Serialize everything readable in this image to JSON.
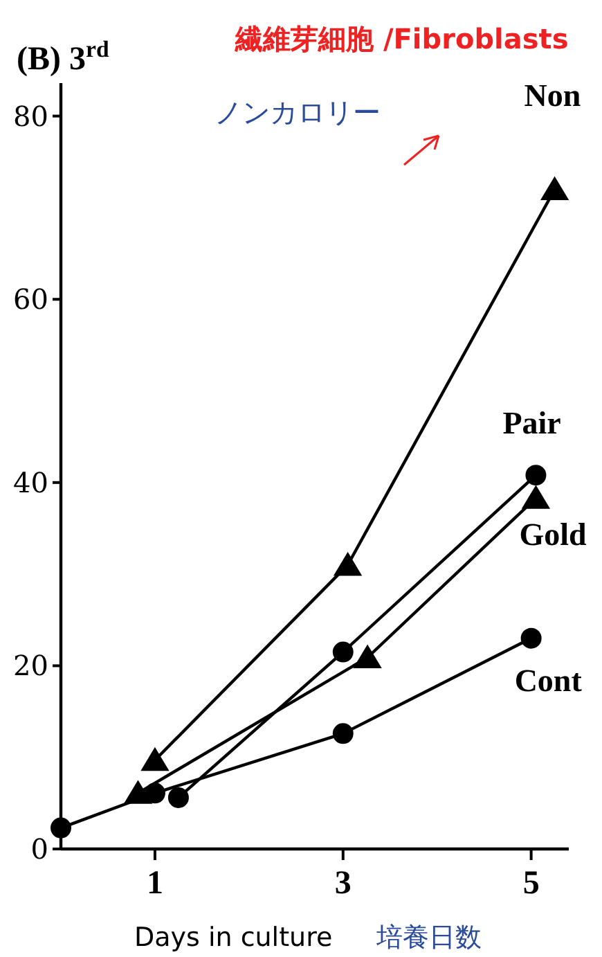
{
  "chart_data": {
    "type": "line",
    "title": "(B) 3$^{rd}$",
    "subtitle": "繊維芽細胞 /Fibroblasts",
    "xlabel": "Days in culture",
    "annotations": [
      "ノンカロリー",
      "培養日数"
    ],
    "xlim": [
      0,
      5.4
    ],
    "ylim": [
      0,
      83.6
    ],
    "xticks": [
      1,
      3,
      5
    ],
    "yticks": [
      0,
      20,
      40,
      60,
      80
    ],
    "grid": false,
    "legend": false,
    "series": [
      {
        "name": "Non",
        "color": "#000000",
        "marker": "triangle",
        "x": [
          1,
          3.05,
          5.25
        ],
        "values": [
          9.7,
          31,
          72
        ]
      },
      {
        "name": "Pair",
        "color": "#000000",
        "marker": "circle",
        "x": [
          1.25,
          3,
          5.05
        ],
        "values": [
          5.6,
          21.5,
          40.8
        ]
      },
      {
        "name": "Gold",
        "color": "#000000",
        "marker": "triangle",
        "x": [
          0.82,
          3.26,
          5.05
        ],
        "values": [
          6.1,
          20.9,
          38.3
        ]
      },
      {
        "name": "Cont",
        "color": "#000000",
        "marker": "circle",
        "x": [
          0,
          1,
          3,
          5
        ],
        "values": [
          2.3,
          6.1,
          12.6,
          23
        ]
      }
    ]
  }
}
